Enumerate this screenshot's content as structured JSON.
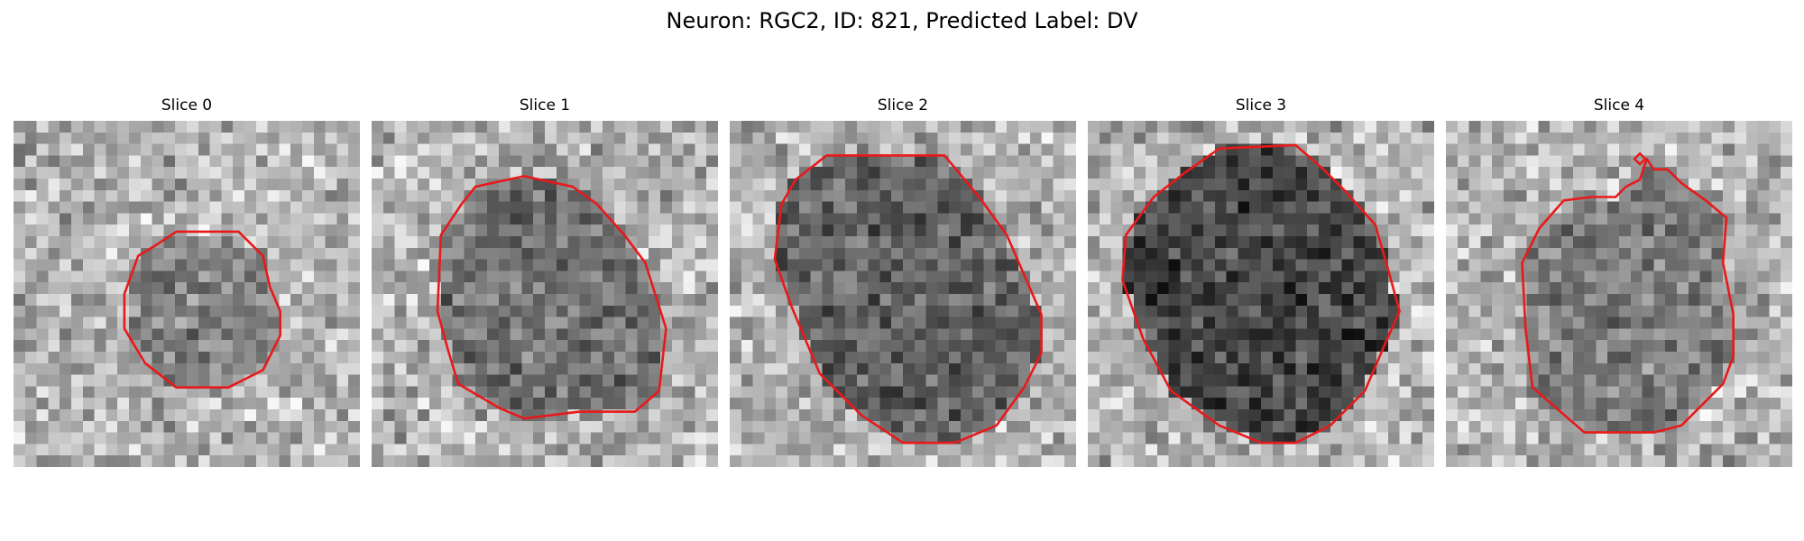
{
  "figure": {
    "title": "Neuron: RGC2, ID: 821, Predicted Label: DV"
  },
  "contour_color": "#e8191a",
  "slices": [
    {
      "label": "Slice 0",
      "seed": 11,
      "dark_level": 0.42,
      "soma_blur": 0.55,
      "contour": [
        [
          0.47,
          0.32
        ],
        [
          0.65,
          0.32
        ],
        [
          0.72,
          0.39
        ],
        [
          0.74,
          0.48
        ],
        [
          0.77,
          0.55
        ],
        [
          0.77,
          0.62
        ],
        [
          0.72,
          0.72
        ],
        [
          0.62,
          0.77
        ],
        [
          0.47,
          0.77
        ],
        [
          0.38,
          0.7
        ],
        [
          0.32,
          0.6
        ],
        [
          0.32,
          0.5
        ],
        [
          0.36,
          0.39
        ],
        [
          0.41,
          0.36
        ]
      ]
    },
    {
      "label": "Slice 1",
      "seed": 23,
      "dark_level": 0.36,
      "soma_blur": 0.4,
      "contour": [
        [
          0.3,
          0.19
        ],
        [
          0.44,
          0.16
        ],
        [
          0.58,
          0.19
        ],
        [
          0.65,
          0.24
        ],
        [
          0.73,
          0.33
        ],
        [
          0.79,
          0.41
        ],
        [
          0.85,
          0.6
        ],
        [
          0.83,
          0.78
        ],
        [
          0.76,
          0.84
        ],
        [
          0.6,
          0.84
        ],
        [
          0.44,
          0.86
        ],
        [
          0.37,
          0.83
        ],
        [
          0.25,
          0.76
        ],
        [
          0.22,
          0.66
        ],
        [
          0.19,
          0.55
        ],
        [
          0.2,
          0.33
        ],
        [
          0.26,
          0.24
        ]
      ]
    },
    {
      "label": "Slice 2",
      "seed": 37,
      "dark_level": 0.3,
      "soma_blur": 0.35,
      "contour": [
        [
          0.28,
          0.1
        ],
        [
          0.62,
          0.1
        ],
        [
          0.72,
          0.22
        ],
        [
          0.8,
          0.33
        ],
        [
          0.9,
          0.56
        ],
        [
          0.9,
          0.67
        ],
        [
          0.85,
          0.77
        ],
        [
          0.77,
          0.88
        ],
        [
          0.65,
          0.93
        ],
        [
          0.5,
          0.93
        ],
        [
          0.38,
          0.85
        ],
        [
          0.26,
          0.73
        ],
        [
          0.18,
          0.54
        ],
        [
          0.13,
          0.4
        ],
        [
          0.15,
          0.24
        ],
        [
          0.19,
          0.17
        ]
      ]
    },
    {
      "label": "Slice 3",
      "seed": 49,
      "dark_level": 0.18,
      "soma_blur": 0.3,
      "contour": [
        [
          0.38,
          0.08
        ],
        [
          0.6,
          0.07
        ],
        [
          0.68,
          0.14
        ],
        [
          0.74,
          0.2
        ],
        [
          0.83,
          0.3
        ],
        [
          0.87,
          0.44
        ],
        [
          0.9,
          0.55
        ],
        [
          0.86,
          0.64
        ],
        [
          0.8,
          0.78
        ],
        [
          0.7,
          0.88
        ],
        [
          0.6,
          0.93
        ],
        [
          0.5,
          0.93
        ],
        [
          0.38,
          0.88
        ],
        [
          0.24,
          0.78
        ],
        [
          0.16,
          0.63
        ],
        [
          0.1,
          0.46
        ],
        [
          0.11,
          0.33
        ],
        [
          0.19,
          0.22
        ],
        [
          0.28,
          0.15
        ]
      ]
    },
    {
      "label": "Slice 4",
      "seed": 61,
      "dark_level": 0.4,
      "soma_blur": 0.45,
      "contour": [
        [
          0.58,
          0.11
        ],
        [
          0.6,
          0.14
        ],
        [
          0.64,
          0.14
        ],
        [
          0.68,
          0.18
        ],
        [
          0.75,
          0.23
        ],
        [
          0.81,
          0.28
        ],
        [
          0.8,
          0.41
        ],
        [
          0.83,
          0.56
        ],
        [
          0.83,
          0.68
        ],
        [
          0.8,
          0.76
        ],
        [
          0.68,
          0.88
        ],
        [
          0.6,
          0.9
        ],
        [
          0.4,
          0.9
        ],
        [
          0.25,
          0.77
        ],
        [
          0.23,
          0.6
        ],
        [
          0.22,
          0.41
        ],
        [
          0.27,
          0.31
        ],
        [
          0.34,
          0.23
        ],
        [
          0.42,
          0.22
        ],
        [
          0.49,
          0.22
        ],
        [
          0.52,
          0.19
        ],
        [
          0.56,
          0.17
        ]
      ],
      "marker": [
        0.56,
        0.11
      ]
    }
  ]
}
